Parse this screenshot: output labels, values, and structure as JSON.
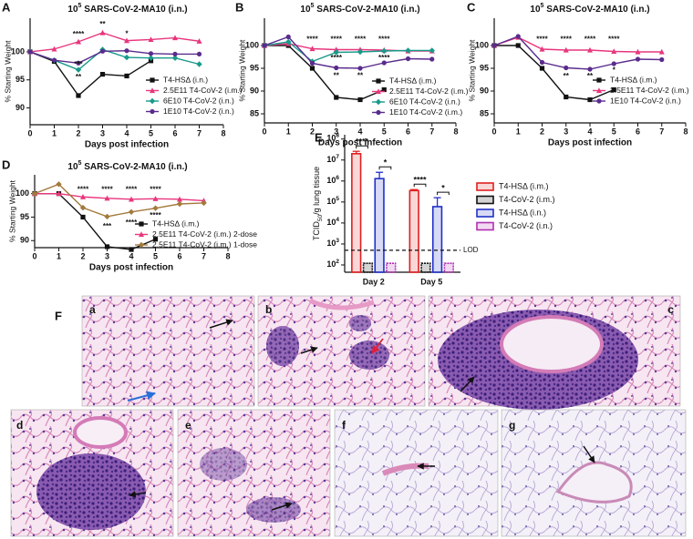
{
  "chart_data": [
    {
      "type": "line",
      "label": "A",
      "title_base": "10",
      "title_exp": "5",
      "title": " SARS-CoV-2-MA10 (i.n.)",
      "xlabel": "Days post infection",
      "ylabel": "% Starting Weight",
      "x": [
        0,
        1,
        2,
        3,
        4,
        5,
        6,
        7
      ],
      "xlim": [
        0,
        8
      ],
      "xticks": [
        0,
        1,
        2,
        3,
        4,
        5,
        6,
        7,
        8
      ],
      "ylim": [
        87,
        106
      ],
      "yticks": [
        90,
        95,
        100
      ],
      "series": [
        {
          "name": "T4-HSΔ (i.n.)",
          "color": "#111111",
          "marker": "square",
          "values": [
            100,
            98.3,
            92.2,
            96,
            95.7,
            98.4,
            null,
            null
          ]
        },
        {
          "name": "2.5E11 T4-CoV-2 (i.m.)",
          "color": "#e8367c",
          "marker": "triangle",
          "values": [
            100,
            100.5,
            101.8,
            103.4,
            102,
            102.2,
            102.5,
            101.9
          ]
        },
        {
          "name": "6E10 T4-CoV-2 (i.n.)",
          "color": "#189a8a",
          "marker": "diamond",
          "values": [
            100,
            98.5,
            96.8,
            100.4,
            99,
            98.9,
            98.9,
            97.8
          ]
        },
        {
          "name": "1E10 T4-CoV-2 (i.n.)",
          "color": "#5a2b8c",
          "marker": "circle",
          "values": [
            100,
            98.5,
            98,
            100.1,
            100.2,
            99.7,
            99.6,
            99.6
          ]
        }
      ],
      "annotations": [
        {
          "text": "****",
          "x": 2,
          "y": 103.1,
          "color": "#e8367c"
        },
        {
          "text": "**",
          "x": 3,
          "y": 104.9,
          "color": "#e8367c"
        },
        {
          "text": "*",
          "x": 4,
          "y": 103.2,
          "color": "#e8367c"
        },
        {
          "text": "***",
          "x": 2,
          "y": 97.7,
          "color": "#5a2b8c"
        },
        {
          "text": "**",
          "x": 2,
          "y": 95.5,
          "color": "#189a8a"
        }
      ]
    },
    {
      "type": "line",
      "label": "B",
      "title_base": "10",
      "title_exp": "5",
      "title": " SARS-CoV-2-MA10 (i.n.)",
      "xlabel": "Days post infection",
      "ylabel": "% Starting Weight",
      "x": [
        0,
        1,
        2,
        3,
        4,
        5,
        6,
        7
      ],
      "xlim": [
        0,
        8
      ],
      "xticks": [
        0,
        1,
        2,
        3,
        4,
        5,
        6,
        7,
        8
      ],
      "ylim": [
        83,
        106
      ],
      "yticks": [
        85,
        90,
        95,
        100
      ],
      "series": [
        {
          "name": "T4-HSΔ (i.m.)",
          "color": "#111111",
          "marker": "square",
          "values": [
            100,
            100,
            95,
            88.6,
            88.1,
            90.3,
            null,
            null
          ]
        },
        {
          "name": "2.5E11 T4-CoV-2 (i.m.)",
          "color": "#e8367c",
          "marker": "triangle",
          "values": [
            100,
            100.4,
            99.3,
            99.1,
            99.1,
            99,
            98.8,
            98.8
          ]
        },
        {
          "name": "6E10 T4-CoV-2 (i.n.)",
          "color": "#189a8a",
          "marker": "diamond",
          "values": [
            100,
            100.8,
            96.5,
            98.5,
            98.6,
            98.8,
            98.9,
            98.9
          ]
        },
        {
          "name": "1E10 T4-CoV-2 (i.m.)",
          "color": "#5a2b8c",
          "marker": "circle",
          "values": [
            100,
            101.9,
            96.1,
            95.1,
            95,
            96.2,
            97.1,
            97
          ]
        }
      ],
      "annotations": [
        {
          "text": "****",
          "x": 2,
          "y": 101.3,
          "color": "#e8367c"
        },
        {
          "text": "****",
          "x": 3,
          "y": 101.3,
          "color": "#e8367c"
        },
        {
          "text": "****",
          "x": 4,
          "y": 101.3,
          "color": "#e8367c"
        },
        {
          "text": "****",
          "x": 5,
          "y": 101.3,
          "color": "#e8367c"
        },
        {
          "text": "****",
          "x": 3,
          "y": 97.2,
          "color": "#189a8a"
        },
        {
          "text": "****",
          "x": 5,
          "y": 97.2,
          "color": "#189a8a"
        },
        {
          "text": "**",
          "x": 3,
          "y": 93.3,
          "color": "#5a2b8c"
        },
        {
          "text": "**",
          "x": 4,
          "y": 93.3,
          "color": "#5a2b8c"
        }
      ]
    },
    {
      "type": "line",
      "label": "C",
      "title_base": "10",
      "title_exp": "5",
      "title": " SARS-CoV-2-MA10 (i.n.)",
      "xlabel": "Days post infection",
      "ylabel": "% Starting Weight",
      "x": [
        0,
        1,
        2,
        3,
        4,
        5,
        6,
        7
      ],
      "xlim": [
        0,
        8
      ],
      "xticks": [
        0,
        1,
        2,
        3,
        4,
        5,
        6,
        7,
        8
      ],
      "ylim": [
        83,
        106
      ],
      "yticks": [
        85,
        90,
        95,
        100
      ],
      "series": [
        {
          "name": "T4-HSΔ (i.m.)",
          "color": "#111111",
          "marker": "square",
          "values": [
            100,
            100,
            95,
            88.7,
            88.1,
            90.3,
            null,
            null
          ]
        },
        {
          "name": "2.5E11 T4-CoV-2 (i.m.)",
          "color": "#e8367c",
          "marker": "triangle",
          "values": [
            100,
            101.8,
            99.2,
            99,
            99,
            98.7,
            98.6,
            98.6
          ]
        },
        {
          "name": "1E10 T4-CoV-2 (i.n.)",
          "color": "#5a2b8c",
          "marker": "circle",
          "values": [
            100,
            102,
            96.3,
            95.1,
            94.8,
            96,
            97,
            96.9
          ]
        }
      ],
      "annotations": [
        {
          "text": "****",
          "x": 2,
          "y": 101.3,
          "color": "#e8367c"
        },
        {
          "text": "****",
          "x": 3,
          "y": 101.3,
          "color": "#e8367c"
        },
        {
          "text": "****",
          "x": 4,
          "y": 101.3,
          "color": "#e8367c"
        },
        {
          "text": "****",
          "x": 5,
          "y": 101.3,
          "color": "#e8367c"
        },
        {
          "text": "**",
          "x": 3,
          "y": 93.2,
          "color": "#5a2b8c"
        },
        {
          "text": "**",
          "x": 4,
          "y": 93.2,
          "color": "#5a2b8c"
        },
        {
          "text": "*",
          "x": 5,
          "y": 94.5,
          "color": "#5a2b8c"
        }
      ]
    },
    {
      "type": "line",
      "label": "D",
      "title_base": "10",
      "title_exp": "5",
      "title": " SARS-CoV-2-MA10 (i.n.)",
      "xlabel": "Days post infection",
      "ylabel": "% Starting Weight",
      "x": [
        0,
        1,
        2,
        3,
        4,
        5,
        6,
        7
      ],
      "xlim": [
        0,
        8
      ],
      "xticks": [
        0,
        1,
        2,
        3,
        4,
        5,
        6,
        7,
        8
      ],
      "ylim": [
        88.5,
        104
      ],
      "yticks": [
        90,
        95,
        100
      ],
      "series": [
        {
          "name": "T4-HSΔ (i.m.)",
          "color": "#111111",
          "marker": "square",
          "values": [
            100,
            100,
            95,
            88.7,
            88.1,
            90.3,
            null,
            null
          ]
        },
        {
          "name": "2.5E11 T4-CoV-2 (i.m.) 2-dose",
          "color": "#e8367c",
          "marker": "triangle",
          "values": [
            100,
            100,
            99.3,
            99,
            98.8,
            98.9,
            98.8,
            98.5
          ]
        },
        {
          "name": "2.5E11 T4-CoV-2 (i.m.) 1-dose",
          "color": "#a37a3c",
          "marker": "diamond",
          "values": [
            100,
            102,
            97,
            95.1,
            96.1,
            96.9,
            97.8,
            98
          ]
        }
      ],
      "annotations": [
        {
          "text": "****",
          "x": 2,
          "y": 100.8,
          "color": "#e8367c"
        },
        {
          "text": "****",
          "x": 3,
          "y": 100.8,
          "color": "#e8367c"
        },
        {
          "text": "****",
          "x": 4,
          "y": 100.8,
          "color": "#e8367c"
        },
        {
          "text": "****",
          "x": 5,
          "y": 100.8,
          "color": "#e8367c"
        },
        {
          "text": "***",
          "x": 3,
          "y": 93,
          "color": "#a37a3c"
        },
        {
          "text": "****",
          "x": 4,
          "y": 93.8,
          "color": "#a37a3c"
        },
        {
          "text": "****",
          "x": 5,
          "y": 95.3,
          "color": "#a37a3c"
        }
      ]
    },
    {
      "type": "bar",
      "label": "E",
      "log_y": true,
      "ylabel": "TCID",
      "ylabel_sub": "50",
      "ylabel_rest": "/g lung tissue",
      "categories": [
        "Day 2",
        "Day 5"
      ],
      "ylim": [
        45,
        160000000
      ],
      "yticks": [
        {
          "value": 100,
          "label": "10",
          "sup": "2"
        },
        {
          "value": 1000,
          "label": "10",
          "sup": "3"
        },
        {
          "value": 10000,
          "label": "10",
          "sup": "4"
        },
        {
          "value": 100000,
          "label": "10",
          "sup": "5"
        },
        {
          "value": 1000000,
          "label": "10",
          "sup": "6"
        },
        {
          "value": 10000000,
          "label": "10",
          "sup": "7"
        },
        {
          "value": 100000000,
          "label": "10",
          "sup": "8"
        }
      ],
      "series": [
        {
          "name": "T4-HSΔ (i.m.)",
          "color": "#e02020",
          "values": [
            20000000,
            350000
          ],
          "errors": [
            6000000,
            40000
          ]
        },
        {
          "name": "T4-CoV-2 (i.m.)",
          "color": "#111111",
          "values": [
            120,
            120
          ],
          "errors": [
            null,
            null
          ]
        },
        {
          "name": "T4-HSΔ (i.n.)",
          "color": "#2030c8",
          "values": [
            1300000,
            60000
          ],
          "errors": [
            1300000,
            100000
          ]
        },
        {
          "name": "T4-CoV-2 (i.n.)",
          "color": "#b030b0",
          "values": [
            120,
            120
          ],
          "errors": [
            null,
            null
          ]
        }
      ],
      "lod": {
        "value": 500,
        "label": "LOD"
      },
      "significance": [
        {
          "text": "****",
          "category": 0,
          "from": 0,
          "to": 1
        },
        {
          "text": "*",
          "category": 0,
          "from": 2,
          "to": 3
        },
        {
          "text": "****",
          "category": 1,
          "from": 0,
          "to": 1
        },
        {
          "text": "*",
          "category": 1,
          "from": 2,
          "to": 3
        }
      ]
    }
  ],
  "panel_f": {
    "label": "F",
    "panels": [
      {
        "label": "a"
      },
      {
        "label": "b"
      },
      {
        "label": "c"
      },
      {
        "label": "d"
      },
      {
        "label": "e"
      },
      {
        "label": "f"
      },
      {
        "label": "g"
      }
    ]
  }
}
